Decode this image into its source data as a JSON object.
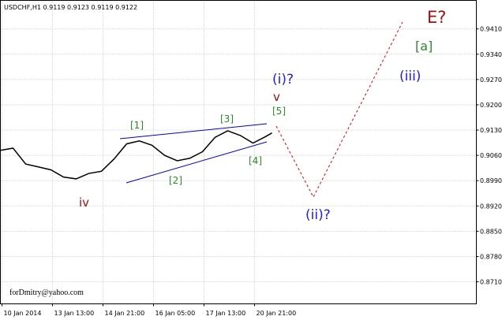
{
  "chart_data": {
    "type": "line",
    "title": "USDCHF,H1  0.9119 0.9123 0.9119 0.9122",
    "watermark": "forDmitry@yahoo.com",
    "x": [
      0,
      8,
      16,
      24,
      32,
      40,
      48,
      56,
      64,
      72,
      80,
      88,
      96,
      104,
      112,
      120,
      128,
      136,
      144,
      152,
      160,
      168,
      172
    ],
    "series": [
      {
        "color": "#000000",
        "values": [
          0.9074,
          0.908,
          0.9036,
          0.9028,
          0.902,
          0.9,
          0.8995,
          0.901,
          0.9016,
          0.905,
          0.9092,
          0.91,
          0.9088,
          0.906,
          0.9045,
          0.9052,
          0.907,
          0.911,
          0.9128,
          0.9115,
          0.9094,
          0.9112,
          0.9122
        ]
      }
    ],
    "xlim": [
      0,
      301.5
    ],
    "xticks": [
      {
        "value": 1,
        "label": "10 Jan 2014"
      },
      {
        "value": 33,
        "label": "13 Jan 13:00"
      },
      {
        "value": 65,
        "label": "14 Jan 21:00"
      },
      {
        "value": 97,
        "label": "16 Jan 05:00"
      },
      {
        "value": 129,
        "label": "17 Jan 13:00"
      },
      {
        "value": 161,
        "label": "20 Jan 21:00"
      }
    ],
    "ylim": [
      0.8649,
      0.9489
    ],
    "yticks": [
      {
        "value": 0.871,
        "label": "0.8710"
      },
      {
        "value": 0.878,
        "label": "0.8780"
      },
      {
        "value": 0.885,
        "label": "0.8850"
      },
      {
        "value": 0.892,
        "label": "0.8920"
      },
      {
        "value": 0.899,
        "label": "0.8990"
      },
      {
        "value": 0.906,
        "label": "0.9060"
      },
      {
        "value": 0.913,
        "label": "0.9130"
      },
      {
        "value": 0.92,
        "label": "0.9200"
      },
      {
        "value": 0.927,
        "label": "0.9270"
      },
      {
        "value": 0.934,
        "label": "0.9340"
      },
      {
        "value": 0.941,
        "label": "0.9410"
      }
    ],
    "grid": true,
    "annotations": [
      "[1]",
      "[2]",
      "[3]",
      "[4]",
      "[5]",
      "iv",
      "v",
      "(i)?",
      "(ii)?",
      "(iii)",
      "[a]",
      "E?"
    ]
  }
}
